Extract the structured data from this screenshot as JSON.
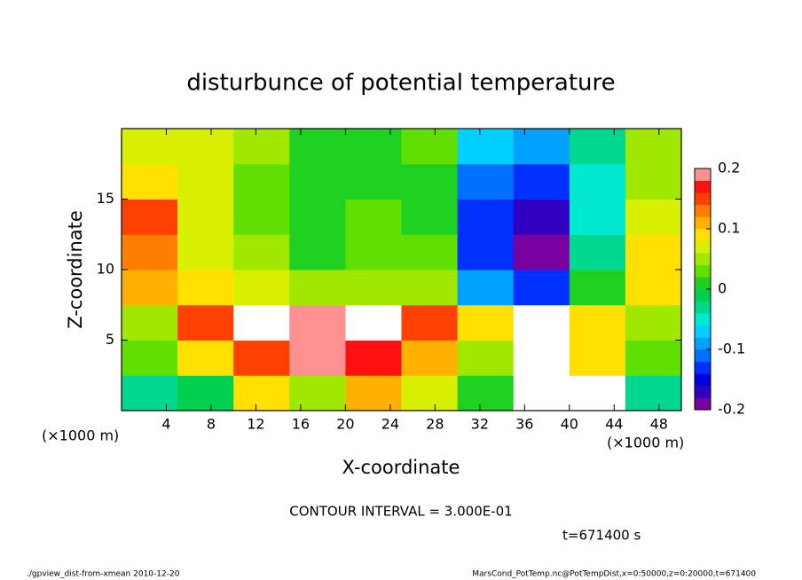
{
  "chart_data": {
    "type": "heatmap",
    "title": "disturbunce of potential temperature",
    "x_label": "X-coordinate",
    "y_label": "Z-coordinate",
    "x_unit_left": "(×1000 m)",
    "x_unit_right": "(×1000 m)",
    "contour_note": "CONTOUR INTERVAL = 3.000E-01",
    "time_note": "t=671400 s",
    "footer_left": "./gpview_dist-from-xmean  2010-12-20",
    "footer_right": "MarsCond_PotTemp.nc@PotTempDist,x=0:50000,z=0:20000,t=671400",
    "xlim": [
      0,
      50
    ],
    "ylim": [
      0,
      20
    ],
    "xticks": [
      4,
      8,
      12,
      16,
      20,
      24,
      28,
      32,
      36,
      40,
      44,
      48
    ],
    "yticks": [
      5,
      10,
      15
    ],
    "x_edges": [
      0,
      5,
      10,
      15,
      20,
      25,
      30,
      35,
      40,
      45,
      50
    ],
    "z_edges": [
      0,
      2.5,
      5,
      7.5,
      10,
      12.5,
      15,
      17.5,
      20
    ],
    "z": [
      [
        -0.02,
        0.0,
        0.1,
        0.05,
        0.12,
        0.08,
        0.02,
        0.22,
        0.22,
        -0.02
      ],
      [
        0.04,
        0.1,
        0.15,
        0.2,
        0.18,
        0.12,
        0.05,
        0.22,
        0.1,
        0.04
      ],
      [
        0.06,
        0.15,
        0.22,
        0.2,
        0.22,
        0.15,
        0.1,
        0.22,
        0.1,
        0.06
      ],
      [
        0.12,
        0.1,
        0.08,
        0.05,
        0.06,
        0.06,
        -0.08,
        -0.12,
        0.02,
        0.1
      ],
      [
        0.14,
        0.08,
        0.06,
        0.02,
        0.04,
        0.03,
        -0.12,
        -0.18,
        -0.02,
        0.1
      ],
      [
        0.15,
        0.08,
        0.04,
        0.01,
        0.03,
        0.01,
        -0.12,
        -0.17,
        -0.04,
        0.08
      ],
      [
        0.1,
        0.08,
        0.04,
        0.01,
        0.02,
        0.02,
        -0.1,
        -0.12,
        -0.04,
        0.06
      ],
      [
        0.08,
        0.08,
        0.05,
        0.02,
        0.02,
        0.03,
        -0.06,
        -0.08,
        -0.02,
        0.05
      ]
    ],
    "colorbar": {
      "lim": [
        -0.2,
        0.2
      ],
      "ticks": [
        -0.2,
        -0.1,
        0,
        0.1,
        0.2
      ],
      "levels": [
        -0.2,
        -0.18,
        -0.16,
        -0.14,
        -0.12,
        -0.1,
        -0.08,
        -0.06,
        -0.04,
        -0.02,
        0,
        0.02,
        0.04,
        0.06,
        0.08,
        0.1,
        0.12,
        0.14,
        0.16,
        0.18,
        0.2
      ],
      "colors": [
        "#7800a0",
        "#3000c0",
        "#0000e0",
        "#0030ff",
        "#0070ff",
        "#00a0ff",
        "#00d0ff",
        "#00e8d0",
        "#00d890",
        "#00d050",
        "#20d020",
        "#60e000",
        "#a0e800",
        "#d8f000",
        "#ffe000",
        "#ffb000",
        "#ff8000",
        "#ff4000",
        "#ff1010",
        "#ff9090"
      ],
      "over_color": "#ffffff"
    }
  }
}
